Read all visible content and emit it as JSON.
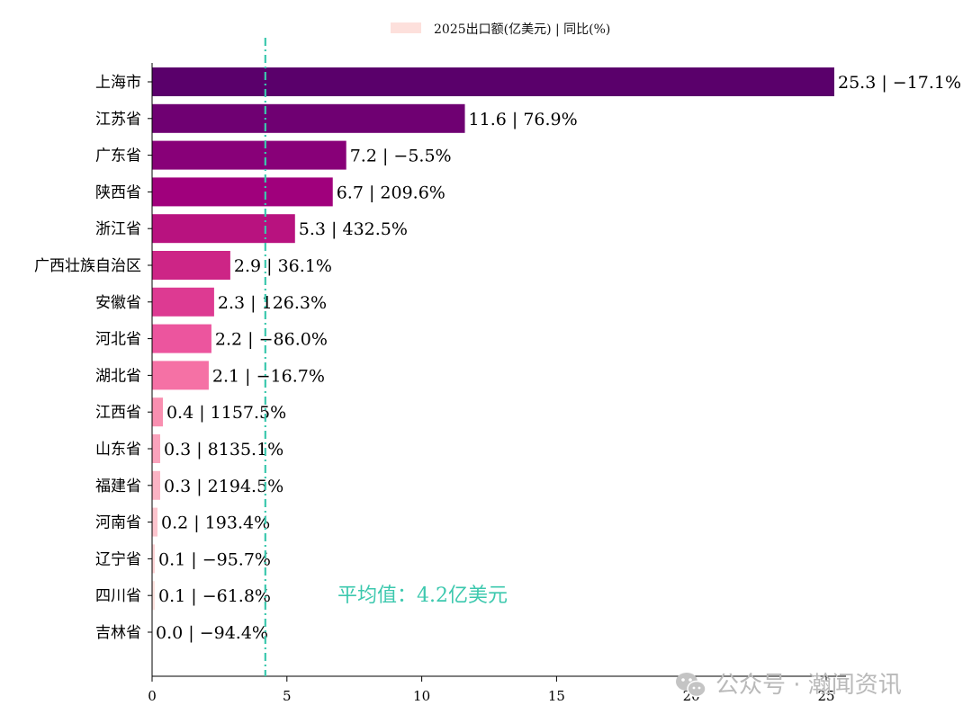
{
  "chart_data": {
    "type": "bar",
    "orientation": "horizontal",
    "legend": {
      "label": "2025出口额(亿美元) | 同比(%)",
      "color": "#fde0dc",
      "placement": "top-center"
    },
    "categories": [
      "上海市",
      "江苏省",
      "广东省",
      "陕西省",
      "浙江省",
      "广西壮族自治区",
      "安徽省",
      "河北省",
      "湖北省",
      "江西省",
      "山东省",
      "福建省",
      "河南省",
      "辽宁省",
      "四川省",
      "吉林省"
    ],
    "values": [
      25.3,
      11.6,
      7.2,
      6.7,
      5.3,
      2.9,
      2.3,
      2.2,
      2.1,
      0.4,
      0.3,
      0.3,
      0.2,
      0.1,
      0.1,
      0.0
    ],
    "yoy_percent": [
      -17.1,
      76.9,
      -5.5,
      209.6,
      432.5,
      36.1,
      126.3,
      -86.0,
      -16.7,
      1157.5,
      8135.1,
      2194.5,
      193.4,
      -95.7,
      -61.8,
      -94.4
    ],
    "data_labels": [
      "25.3 | −17.1%",
      "11.6 | 76.9%",
      "7.2 | −5.5%",
      "6.7 | 209.6%",
      "5.3 | 432.5%",
      "2.9 | 36.1%",
      "2.3 | 126.3%",
      "2.2 | −86.0%",
      "2.1 | −16.7%",
      "0.4 | 1157.5%",
      "0.3 | 8135.1%",
      "0.3 | 2194.5%",
      "0.2 | 193.4%",
      "0.1 | −95.7%",
      "0.1 | −61.8%",
      "0.0 | −94.4%"
    ],
    "bar_colors": [
      "#5a006b",
      "#6f0072",
      "#880078",
      "#a0007c",
      "#b8127f",
      "#cd2586",
      "#dd3a92",
      "#ec559e",
      "#f571a5",
      "#f98fb0",
      "#faa3bc",
      "#fbb3c4",
      "#fcc4cd",
      "#fdd3d5",
      "#fde2de",
      "#fff0ec"
    ],
    "xlim": [
      0,
      25.8
    ],
    "xticks": [
      0,
      5,
      10,
      15,
      20,
      25
    ],
    "average": {
      "value": 4.2,
      "label": "平均值：4.2亿美元",
      "color": "#3cc8ae"
    },
    "grid": false
  },
  "watermark": {
    "text": "公众号 · 瀚闻资讯",
    "icon": "wechat-icon"
  }
}
